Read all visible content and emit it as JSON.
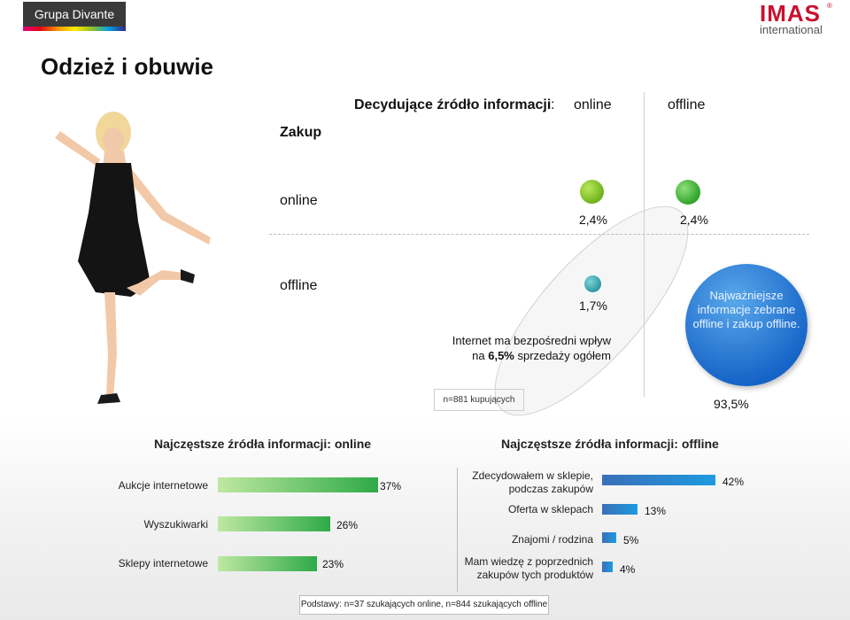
{
  "header": {
    "brand_left": "Grupa Divante",
    "brand_right": "IMAS",
    "brand_right_reg": "®",
    "brand_right_sub": "international"
  },
  "title": "Odzież i obuwie",
  "matrix": {
    "decisive_label": "Decydujące źródło informacji",
    "decisive_colon": ":",
    "col_online": "online",
    "col_offline": "offline",
    "row_header": "Zakup",
    "row_online": "online",
    "row_offline": "offline",
    "values": {
      "online_online": "2,4%",
      "online_offline": "2,4%",
      "offline_online": "1,7%",
      "offline_offline": "93,5%"
    },
    "highlight_text": "Najważniejsze informacje zebrane offline i zakup offline.",
    "internet_note_line1": "Internet ma bezpośredni wpływ",
    "internet_note_prefix": "na ",
    "internet_note_bold": "6,5%",
    "internet_note_suffix": " sprzedaży ogółem",
    "sample": "n=881 kupujących",
    "colors": {
      "green_dot": "#6fb31c",
      "dark_green_dot": "#2fa32b",
      "teal_dot": "#2c9aa3",
      "blue_circle": "#1463c7"
    }
  },
  "sources_online": {
    "title": "Najczęstsze źródła informacji: online",
    "items": [
      {
        "label": "Aukcje internetowe",
        "value": 37,
        "display": "37%"
      },
      {
        "label": "Wyszukiwarki",
        "value": 26,
        "display": "26%"
      },
      {
        "label": "Sklepy internetowe",
        "value": 23,
        "display": "23%"
      }
    ],
    "bar_color": "#2eaa48"
  },
  "sources_offline": {
    "title": "Najczęstsze źródła informacji: offline",
    "items": [
      {
        "label": "Zdecydowałem w sklepie, podczas zakupów",
        "value": 42,
        "display": "42%"
      },
      {
        "label": "Oferta w sklepach",
        "value": 13,
        "display": "13%"
      },
      {
        "label": "Znajomi / rodzina",
        "value": 5,
        "display": "5%"
      },
      {
        "label": "Mam wiedzę z poprzednich zakupów tych produktów",
        "value": 4,
        "display": "4%"
      }
    ],
    "bar_color": "#1e9ae0"
  },
  "footer": "Podstawy: n=37 szukających online, n=844 szukających offline"
}
